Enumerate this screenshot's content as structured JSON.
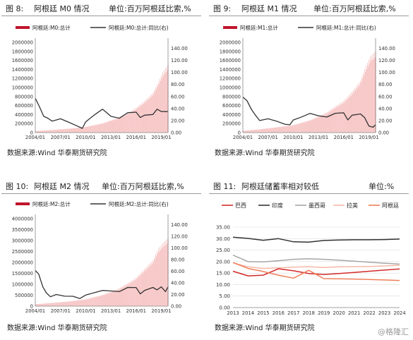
{
  "figures": [
    {
      "fig_label": "图 8:",
      "title": "阿根廷 M0 情况",
      "unit": "单位:百万阿根廷比索,%",
      "source": "数据来源:Wind 华泰期货研究院",
      "chart_data": {
        "type": "bar+line",
        "legend": [
          "阿根廷:M0:总计",
          "阿根廷:M0:总计:同比(右)"
        ],
        "x_ticks": [
          "2004/01",
          "2007/01",
          "2010/01",
          "2013/01",
          "2016/01",
          "2019/01"
        ],
        "y_left_ticks": [
          "0",
          "200000",
          "400000",
          "600000",
          "800000",
          "1000000",
          "1200000",
          "1400000",
          "1600000",
          "1800000",
          "2000000"
        ],
        "y_left_range": [
          0,
          2000000
        ],
        "y_right_ticks": [
          "0.00",
          "20.00",
          "40.00",
          "60.00",
          "80.00",
          "100.00",
          "120.00",
          "140.00"
        ],
        "y_right_range": [
          0,
          150
        ],
        "x_start": 2004.0,
        "x_end": 2019.8,
        "bar_series": {
          "name": "阿根廷:M0:总计",
          "color": "#f4b3b3",
          "points": [
            [
              2004.0,
              35000
            ],
            [
              2006.0,
              60000
            ],
            [
              2008.0,
              90000
            ],
            [
              2010.0,
              130000
            ],
            [
              2012.0,
              210000
            ],
            [
              2014.0,
              340000
            ],
            [
              2015.0,
              430000
            ],
            [
              2016.0,
              550000
            ],
            [
              2017.0,
              700000
            ],
            [
              2018.0,
              880000
            ],
            [
              2018.6,
              1100000
            ],
            [
              2019.2,
              1350000
            ],
            [
              2019.8,
              1500000
            ]
          ]
        },
        "line_series": {
          "name": "阿根廷:M0:总计:同比(右)",
          "color": "#333333",
          "points": [
            [
              2004.0,
              58
            ],
            [
              2004.5,
              42
            ],
            [
              2005.0,
              28
            ],
            [
              2005.5,
              23
            ],
            [
              2006.0,
              20
            ],
            [
              2007.0,
              22
            ],
            [
              2008.0,
              18
            ],
            [
              2009.0,
              10
            ],
            [
              2009.6,
              8
            ],
            [
              2010.0,
              17
            ],
            [
              2011.0,
              30
            ],
            [
              2012.0,
              38
            ],
            [
              2013.0,
              28
            ],
            [
              2014.0,
              23
            ],
            [
              2015.0,
              34
            ],
            [
              2016.0,
              33
            ],
            [
              2016.5,
              26
            ],
            [
              2017.0,
              28
            ],
            [
              2018.0,
              31
            ],
            [
              2018.5,
              38
            ],
            [
              2019.0,
              36
            ],
            [
              2019.5,
              34
            ],
            [
              2019.8,
              36
            ]
          ]
        }
      }
    },
    {
      "fig_label": "图 9:",
      "title": "阿根廷 M1 情况",
      "unit": "单位:百万阿根廷比索,%",
      "source": "数据来源:Wind 华泰期货研究院",
      "chart_data": {
        "type": "bar+line",
        "legend": [
          "阿根廷:M1:总计",
          "阿根廷:M1:总计:同比(右)"
        ],
        "x_ticks": [
          "2004/01",
          "2007/01",
          "2010/01",
          "2013/01",
          "2016/01",
          "2019/01"
        ],
        "y_left_ticks": [
          "0",
          "200000",
          "400000",
          "600000",
          "800000",
          "1000000",
          "1200000",
          "1400000",
          "1600000",
          "1800000",
          "2000000"
        ],
        "y_left_range": [
          0,
          2000000
        ],
        "y_right_ticks": [
          "0.00",
          "20.00",
          "40.00",
          "60.00",
          "80.00",
          "100.00",
          "120.00",
          "140.00"
        ],
        "y_right_range": [
          0,
          150
        ],
        "x_start": 2004.0,
        "x_end": 2019.8,
        "bar_series": {
          "name": "阿根廷:M1:总计",
          "color": "#f4b3b3",
          "points": [
            [
              2004.0,
              40000
            ],
            [
              2006.0,
              75000
            ],
            [
              2008.0,
              120000
            ],
            [
              2010.0,
              170000
            ],
            [
              2012.0,
              280000
            ],
            [
              2014.0,
              450000
            ],
            [
              2015.0,
              580000
            ],
            [
              2016.0,
              700000
            ],
            [
              2017.0,
              900000
            ],
            [
              2018.0,
              1150000
            ],
            [
              2018.6,
              1450000
            ],
            [
              2019.2,
              1700000
            ],
            [
              2019.8,
              1800000
            ]
          ]
        },
        "line_series": {
          "name": "阿根廷:M1:总计:同比(右)",
          "color": "#333333",
          "points": [
            [
              2004.0,
              60
            ],
            [
              2004.5,
              52
            ],
            [
              2005.0,
              40
            ],
            [
              2005.5,
              28
            ],
            [
              2006.0,
              21
            ],
            [
              2007.0,
              22
            ],
            [
              2008.0,
              20
            ],
            [
              2009.0,
              13
            ],
            [
              2009.6,
              14
            ],
            [
              2010.0,
              20
            ],
            [
              2011.0,
              27
            ],
            [
              2012.0,
              31
            ],
            [
              2013.0,
              29
            ],
            [
              2014.0,
              25
            ],
            [
              2015.0,
              33
            ],
            [
              2016.0,
              32
            ],
            [
              2016.5,
              22
            ],
            [
              2017.0,
              28
            ],
            [
              2018.0,
              32
            ],
            [
              2018.5,
              24
            ],
            [
              2019.0,
              12
            ],
            [
              2019.5,
              8
            ],
            [
              2019.8,
              14
            ]
          ]
        }
      }
    },
    {
      "fig_label": "图 10:",
      "title": "阿根廷 M2 情况",
      "unit": "单位:百万阿根廷比索,%",
      "source": "数据来源:Wind 华泰期货研究院",
      "chart_data": {
        "type": "bar+line",
        "legend": [
          "阿根廷:M2:总计",
          "阿根廷:M2:总计:同比(右)"
        ],
        "x_ticks": [
          "2004/01",
          "2007/01",
          "2010/01",
          "2013/01",
          "2016/01",
          "2019/01"
        ],
        "y_left_ticks": [
          "0",
          "500000",
          "1000000",
          "1500000",
          "2000000",
          "2500000",
          "3000000",
          "3500000",
          "4000000"
        ],
        "y_left_range": [
          0,
          4000000
        ],
        "y_right_ticks": [
          "0.00",
          "20.00",
          "40.00",
          "60.00",
          "80.00",
          "100.00",
          "120.00",
          "140.00"
        ],
        "y_right_range": [
          0,
          150
        ],
        "x_start": 2004.0,
        "x_end": 2019.8,
        "bar_series": {
          "name": "阿根廷:M2:总计",
          "color": "#f4b3b3",
          "points": [
            [
              2004.0,
              90000
            ],
            [
              2006.0,
              150000
            ],
            [
              2008.0,
              220000
            ],
            [
              2010.0,
              320000
            ],
            [
              2012.0,
              520000
            ],
            [
              2014.0,
              820000
            ],
            [
              2015.0,
              1050000
            ],
            [
              2016.0,
              1300000
            ],
            [
              2017.0,
              1700000
            ],
            [
              2018.0,
              2100000
            ],
            [
              2018.6,
              2600000
            ],
            [
              2019.2,
              2900000
            ],
            [
              2019.8,
              3100000
            ]
          ]
        },
        "line_series": {
          "name": "阿根廷:M2:总计:同比(右)",
          "color": "#333333",
          "points": [
            [
              2004.0,
              62
            ],
            [
              2004.4,
              54
            ],
            [
              2004.9,
              34
            ],
            [
              2005.3,
              22
            ],
            [
              2005.8,
              17
            ],
            [
              2006.5,
              19
            ],
            [
              2007.5,
              18
            ],
            [
              2008.5,
              16
            ],
            [
              2009.3,
              14
            ],
            [
              2010.0,
              18
            ],
            [
              2011.0,
              24
            ],
            [
              2012.0,
              26
            ],
            [
              2013.0,
              27
            ],
            [
              2014.0,
              24
            ],
            [
              2015.0,
              33
            ],
            [
              2016.0,
              31
            ],
            [
              2016.5,
              22
            ],
            [
              2017.0,
              26
            ],
            [
              2018.0,
              33
            ],
            [
              2018.5,
              27
            ],
            [
              2019.0,
              34
            ],
            [
              2019.5,
              24
            ],
            [
              2019.8,
              34
            ]
          ]
        }
      }
    },
    {
      "fig_label": "图 11:",
      "title": "阿根廷储蓄率相对较低",
      "unit": "单位:%",
      "source": "数据来源:Wind 华泰期货研究院",
      "chart_data": {
        "type": "line",
        "legend": [
          "巴西",
          "印度",
          "墨西哥",
          "拉美",
          "阿根廷"
        ],
        "x_ticks": [
          "2013",
          "2014",
          "2015",
          "2016",
          "2017",
          "2018",
          "2019",
          "2020",
          "2021",
          "2022",
          "2023",
          "2024"
        ],
        "y_ticks": [
          "0.00",
          "5.00",
          "10.00",
          "15.00",
          "20.00",
          "25.00",
          "30.00",
          "35.00"
        ],
        "y_range": [
          0,
          35
        ],
        "series": [
          {
            "name": "巴西",
            "color": "#d42a2a",
            "values": [
              15.8,
              13.8,
              14.1,
              16.9,
              16.0,
              14.8,
              14.4,
              14.8,
              15.3,
              15.8,
              16.3,
              16.8
            ]
          },
          {
            "name": "印度",
            "color": "#333333",
            "values": [
              30.6,
              30.1,
              29.3,
              30.0,
              28.6,
              28.5,
              29.2,
              29.4,
              29.5,
              29.5,
              29.6,
              29.8
            ]
          },
          {
            "name": "墨西哥",
            "color": "#a6a6a6",
            "values": [
              22.8,
              20.0,
              19.9,
              20.4,
              21.0,
              21.2,
              21.0,
              20.6,
              20.2,
              19.7,
              19.3,
              18.9
            ]
          },
          {
            "name": "拉美",
            "color": "#f6b8a6",
            "values": [
              19.5,
              17.7,
              17.0,
              17.3,
              17.6,
              17.8,
              17.4,
              17.7,
              17.8,
              17.9,
              18.1,
              18.4
            ]
          },
          {
            "name": "阿根廷",
            "color": "#ee7e5a",
            "values": [
              19.6,
              17.0,
              15.7,
              14.1,
              12.8,
              16.2,
              12.6,
              12.5,
              12.4,
              12.2,
              12.0,
              11.8
            ]
          }
        ]
      }
    }
  ],
  "watermark": "@格隆汇"
}
